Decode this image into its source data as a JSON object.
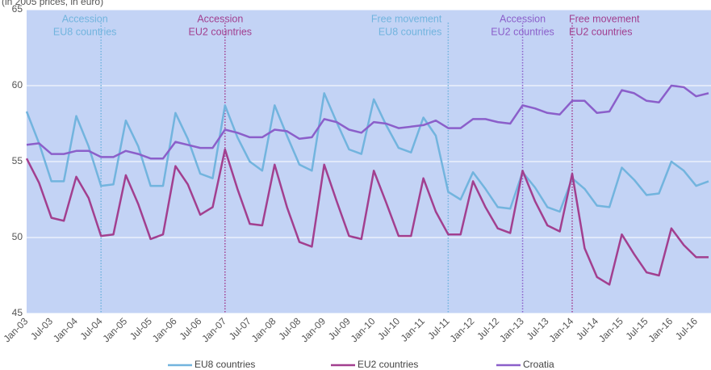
{
  "chart_data": {
    "type": "line",
    "subtitle": "(in 2005 prices, in euro)",
    "categories": [
      "Jan-03",
      null,
      "Jul-03",
      null,
      "Jan-04",
      null,
      "Jul-04",
      null,
      "Jan-05",
      null,
      "Jul-05",
      null,
      "Jan-06",
      null,
      "Jul-06",
      null,
      "Jan-07",
      null,
      "Jul-07",
      null,
      "Jan-08",
      null,
      "Jul-08",
      null,
      "Jan-09",
      null,
      "Jul-09",
      null,
      "Jan-10",
      null,
      "Jul-10",
      null,
      "Jan-11",
      null,
      "Jul-11",
      null,
      "Jan-12",
      null,
      "Jul-12",
      null,
      "Jan-13",
      null,
      "Jul-13",
      null,
      "Jan-14",
      null,
      "Jul-14",
      null,
      "Jan-15",
      null,
      "Jul-15",
      null,
      "Jan-16",
      null,
      "Jul-16",
      null
    ],
    "series": [
      {
        "name": "EU8 countries",
        "color": "#72b4de",
        "values": [
          58.3,
          56.2,
          53.7,
          53.7,
          58.0,
          56.0,
          53.4,
          53.5,
          57.7,
          56.0,
          53.4,
          53.4,
          58.2,
          56.5,
          54.2,
          53.9,
          58.7,
          56.6,
          55.0,
          54.4,
          58.7,
          56.7,
          54.8,
          54.4,
          59.5,
          57.6,
          55.8,
          55.5,
          59.1,
          57.4,
          55.9,
          55.6,
          57.9,
          56.7,
          53.0,
          52.5,
          54.3,
          53.2,
          52.0,
          51.9,
          54.3,
          53.3,
          52.0,
          51.7,
          53.9,
          53.2,
          52.1,
          52.0,
          54.6,
          53.8,
          52.8,
          52.9,
          55.0,
          54.4,
          53.4,
          53.7
        ]
      },
      {
        "name": "EU2 countries",
        "color": "#a23f8f",
        "values": [
          55.2,
          53.6,
          51.3,
          51.1,
          54.0,
          52.6,
          50.1,
          50.2,
          54.1,
          52.2,
          49.9,
          50.2,
          54.7,
          53.5,
          51.5,
          52.0,
          55.8,
          53.2,
          50.9,
          50.8,
          54.8,
          52.0,
          49.7,
          49.4,
          54.8,
          52.4,
          50.1,
          49.9,
          54.4,
          52.3,
          50.1,
          50.1,
          53.9,
          51.7,
          50.2,
          50.2,
          53.7,
          52.0,
          50.6,
          50.3,
          54.4,
          52.4,
          50.8,
          50.4,
          54.2,
          49.3,
          47.4,
          46.9,
          50.2,
          48.9,
          47.7,
          47.5,
          50.6,
          49.5,
          48.7,
          48.7
        ]
      },
      {
        "name": "Croatia",
        "color": "#8b5fca",
        "values": [
          56.1,
          56.2,
          55.5,
          55.5,
          55.7,
          55.7,
          55.3,
          55.3,
          55.7,
          55.5,
          55.2,
          55.2,
          56.3,
          56.1,
          55.9,
          55.9,
          57.1,
          56.9,
          56.6,
          56.6,
          57.1,
          57.0,
          56.5,
          56.6,
          57.8,
          57.6,
          57.1,
          56.9,
          57.6,
          57.5,
          57.2,
          57.3,
          57.4,
          57.7,
          57.2,
          57.2,
          57.8,
          57.8,
          57.6,
          57.5,
          58.7,
          58.5,
          58.2,
          58.1,
          59.0,
          59.0,
          58.2,
          58.3,
          59.7,
          59.5,
          59.0,
          58.9,
          60.0,
          59.9,
          59.3,
          59.5
        ]
      }
    ],
    "ylim": [
      45,
      65
    ],
    "yticks": [
      45,
      50,
      55,
      60,
      65
    ],
    "grid": true,
    "legend": "bottom",
    "annotations": [
      {
        "x": "Jul-04",
        "lines": [
          "Accession",
          "EU8 countries"
        ],
        "color": "#72b4de"
      },
      {
        "x": "Jan-07",
        "lines": [
          "Accession",
          "EU2 countries"
        ],
        "color": "#a23f8f"
      },
      {
        "x": "Jul-11",
        "lines": [
          "Free movement",
          "EU8 countries"
        ],
        "color": "#72b4de"
      },
      {
        "x": "Jan-13",
        "lines": [
          "Accession",
          "EU2 countries"
        ],
        "color": "#8b5fca"
      },
      {
        "x": "Jan-14",
        "lines": [
          "Free movement",
          "EU2 countries"
        ],
        "color": "#a23f8f"
      }
    ]
  }
}
